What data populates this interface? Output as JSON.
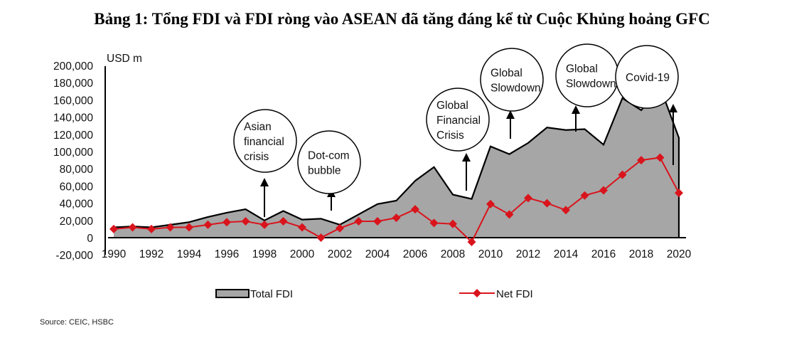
{
  "title": "Bảng 1: Tổng FDI và FDI ròng vào ASEAN đã tăng đáng kể từ Cuộc Khủng hoảng GFC",
  "source": "Source: CEIC, HSBC",
  "chart_data": {
    "type": "area+line",
    "title": "Bảng 1: Tổng FDI và FDI ròng vào ASEAN đã tăng đáng kể từ Cuộc Khủng hoảng GFC",
    "ylabel": "USD m",
    "xlabel": "",
    "ylim": [
      -20000,
      200000
    ],
    "xlim": [
      1990,
      2020
    ],
    "y_ticks": [
      "200,000",
      "180,000",
      "160,000",
      "140,000",
      "120,000",
      "100,000",
      "80,000",
      "60,000",
      "40,000",
      "20,000",
      "0",
      "-20,000"
    ],
    "y_tick_values": [
      200000,
      180000,
      160000,
      140000,
      120000,
      100000,
      80000,
      60000,
      40000,
      20000,
      0,
      -20000
    ],
    "x_ticks": [
      "1990",
      "1992",
      "1994",
      "1996",
      "1998",
      "2000",
      "2002",
      "2004",
      "2006",
      "2008",
      "2010",
      "2012",
      "2014",
      "2016",
      "2018",
      "2020"
    ],
    "x": [
      1990,
      1991,
      1992,
      1993,
      1994,
      1995,
      1996,
      1997,
      1998,
      1999,
      2000,
      2001,
      2002,
      2003,
      2004,
      2005,
      2006,
      2007,
      2008,
      2009,
      2010,
      2011,
      2012,
      2013,
      2014,
      2015,
      2016,
      2017,
      2018,
      2019,
      2020
    ],
    "series": [
      {
        "name": "Total FDI",
        "type": "area",
        "color": "#a6a6a6",
        "values": [
          12000,
          13000,
          12000,
          15000,
          18000,
          24000,
          29000,
          33000,
          20000,
          31000,
          21000,
          22000,
          15000,
          27000,
          39000,
          43000,
          66000,
          82000,
          50000,
          45000,
          106000,
          97000,
          110000,
          128000,
          125000,
          126000,
          108000,
          162000,
          148000,
          175000,
          116000
        ]
      },
      {
        "name": "Net FDI",
        "type": "line",
        "color": "#d9141c",
        "values": [
          10000,
          12000,
          10000,
          12000,
          12000,
          15000,
          18000,
          19000,
          15000,
          19000,
          12000,
          0,
          11000,
          19000,
          19000,
          23000,
          33000,
          17000,
          16000,
          -5000,
          39000,
          27000,
          46000,
          40000,
          32000,
          49000,
          55000,
          73000,
          90000,
          93000,
          52000
        ]
      }
    ],
    "annotations": [
      {
        "lines": [
          "Asian",
          "financial",
          "crisis"
        ]
      },
      {
        "lines": [
          "Dot-com",
          "bubble"
        ]
      },
      {
        "lines": [
          "Global",
          "Financial",
          "Crisis"
        ]
      },
      {
        "lines": [
          "Global",
          "Slowdown"
        ]
      },
      {
        "lines": [
          "Global",
          "Slowdown"
        ]
      },
      {
        "lines": [
          "Covid-19"
        ]
      }
    ],
    "legend": {
      "position": "bottom",
      "entries": [
        "Total FDI",
        "Net FDI"
      ]
    },
    "grid": false
  }
}
